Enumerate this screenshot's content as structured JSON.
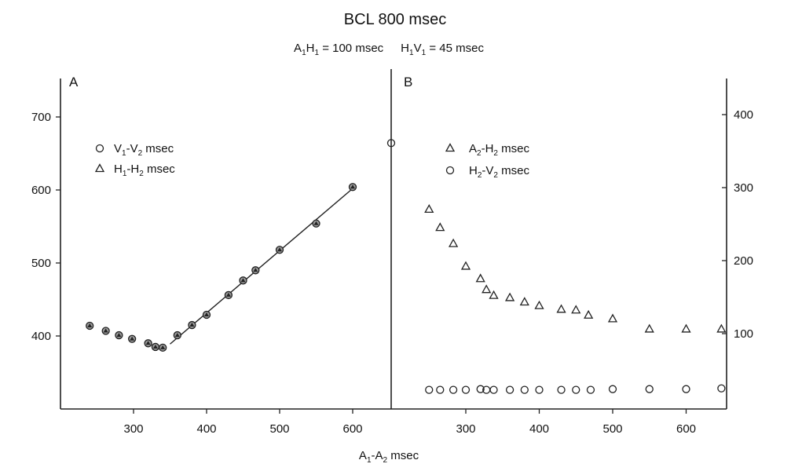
{
  "title": "BCL 800 msec",
  "subtitle": {
    "a": "A",
    "a_sub1": "1",
    "h": "H",
    "h_sub1": "1",
    "eq1": " = 100 msec",
    "h2": "H",
    "h2_sub1": "1",
    "v": "V",
    "v_sub1": "1",
    "eq2": " = 45 msec"
  },
  "xlabel": {
    "a": "A",
    "s1": "1",
    "dash": "-A",
    "s2": "2",
    "rest": " msec"
  },
  "chart_data": [
    {
      "panel": "A",
      "type": "scatter",
      "xlim": [
        205,
        650
      ],
      "ylim": [
        310,
        760
      ],
      "x_ticks": [
        "300",
        "400",
        "500",
        "600"
      ],
      "y_ticks": [
        "400",
        "500",
        "600",
        "700"
      ],
      "legend": [
        {
          "marker": "circle",
          "base1": "V",
          "sub1": "1",
          "base2": "-V",
          "sub2": "2",
          "suffix": " msec"
        },
        {
          "marker": "triangle",
          "base1": "H",
          "sub1": "1",
          "base2": "-H",
          "sub2": "2",
          "suffix": " msec"
        }
      ],
      "series": [
        {
          "marker": "combined",
          "x": [
            240,
            262,
            280,
            298,
            320,
            330,
            340,
            360,
            380,
            400,
            430,
            450,
            467,
            500,
            550,
            600
          ],
          "y": [
            414,
            407,
            401,
            396,
            390,
            385,
            384,
            401,
            415,
            429,
            456,
            476,
            490,
            518,
            554,
            604
          ]
        }
      ],
      "fit_line": {
        "x": [
          350,
          600
        ],
        "y": [
          389,
          602
        ]
      }
    },
    {
      "panel": "B",
      "type": "scatter",
      "xlim": [
        205,
        650
      ],
      "ylim": [
        0,
        450
      ],
      "x_ticks": [
        "300",
        "400",
        "500",
        "600"
      ],
      "y_ticks": [
        "100",
        "200",
        "300",
        "400"
      ],
      "legend": [
        {
          "marker": "triangle",
          "base1": "A",
          "sub1": "2",
          "base2": "-H",
          "sub2": "2",
          "suffix": " msec"
        },
        {
          "marker": "circle",
          "base1": "H",
          "sub1": "2",
          "base2": "-V",
          "sub2": "2",
          "suffix": " msec"
        }
      ],
      "series": [
        {
          "marker": "triangle",
          "x": [
            250,
            265,
            283,
            300,
            320,
            328,
            338,
            360,
            380,
            400,
            430,
            450,
            467,
            500,
            550,
            600,
            648
          ],
          "y": [
            270,
            245,
            223,
            192,
            175,
            160,
            152,
            149,
            143,
            138,
            133,
            132,
            125,
            120,
            106,
            106,
            106
          ]
        },
        {
          "marker": "circle",
          "x": [
            250,
            265,
            283,
            300,
            320,
            328,
            338,
            360,
            380,
            400,
            430,
            450,
            470,
            500,
            550,
            600,
            648
          ],
          "y": [
            23,
            23,
            23,
            23,
            24,
            23,
            23,
            23,
            23,
            23,
            23,
            23,
            23,
            24,
            24,
            24,
            25
          ]
        },
        {
          "marker": "circle",
          "x": [
            650
          ],
          "y": [
            361
          ]
        }
      ]
    }
  ]
}
